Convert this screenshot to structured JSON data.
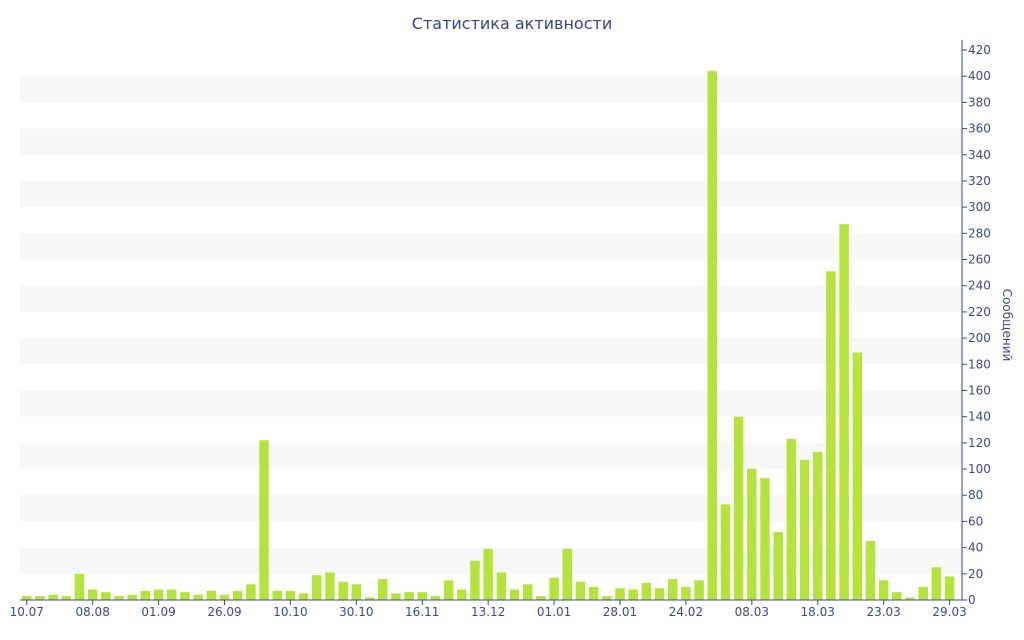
{
  "chart_data": {
    "type": "bar",
    "title": "Статистика активности",
    "xlabel": "",
    "ylabel": "Сообщений",
    "ylim": [
      0,
      420
    ],
    "yticks": [
      0,
      20,
      40,
      60,
      80,
      100,
      120,
      140,
      160,
      180,
      200,
      220,
      240,
      260,
      280,
      300,
      320,
      340,
      360,
      380,
      400,
      420
    ],
    "x_tick_labels": [
      {
        "bar": 0,
        "label": "10.07"
      },
      {
        "bar": 5,
        "label": "08.08"
      },
      {
        "bar": 10,
        "label": "01.09"
      },
      {
        "bar": 15,
        "label": "26.09"
      },
      {
        "bar": 20,
        "label": "10.10"
      },
      {
        "bar": 25,
        "label": "30.10"
      },
      {
        "bar": 30,
        "label": "16.11"
      },
      {
        "bar": 35,
        "label": "13.12"
      },
      {
        "bar": 40,
        "label": "01.01"
      },
      {
        "bar": 45,
        "label": "28.01"
      },
      {
        "bar": 50,
        "label": "24.02"
      },
      {
        "bar": 55,
        "label": "08.03"
      },
      {
        "bar": 60,
        "label": "18.03"
      },
      {
        "bar": 65,
        "label": "23.03"
      },
      {
        "bar": 70,
        "label": "29.03"
      }
    ],
    "values": [
      3,
      3,
      4,
      3,
      20,
      8,
      6,
      3,
      4,
      7,
      8,
      8,
      6,
      4,
      7,
      4,
      7,
      12,
      122,
      7,
      7,
      5,
      19,
      21,
      14,
      12,
      2,
      16,
      5,
      6,
      6,
      3,
      15,
      8,
      30,
      39,
      21,
      8,
      12,
      3,
      17,
      39,
      14,
      10,
      3,
      9,
      8,
      13,
      9,
      16,
      10,
      15,
      404,
      73,
      140,
      100,
      93,
      52,
      123,
      107,
      113,
      251,
      287,
      189,
      45,
      15,
      6,
      2,
      10,
      25,
      18
    ],
    "bar_color": "#b5e33c",
    "band_color": "#f7f7f7",
    "axis_color": "#3a4a8c",
    "grid": "alternating horizontal bands",
    "y_axis_side": "right"
  }
}
